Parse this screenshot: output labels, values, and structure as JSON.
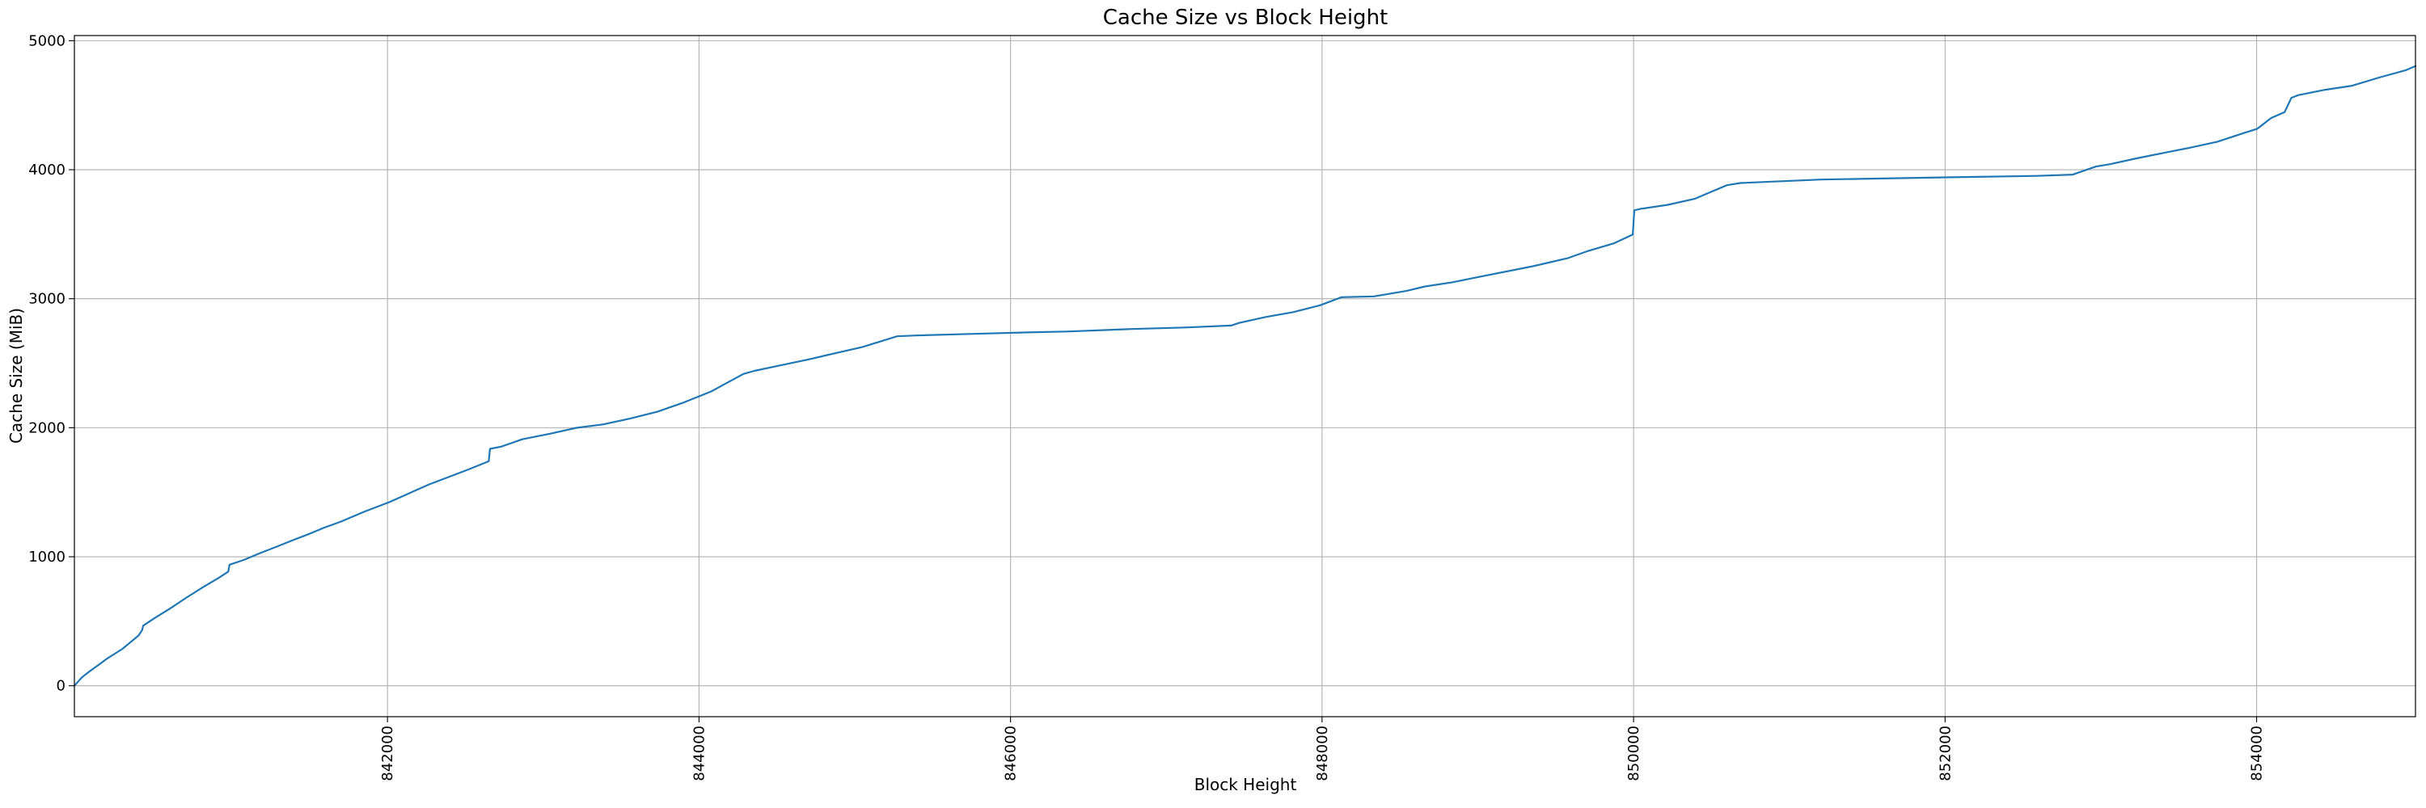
{
  "chart_data": {
    "type": "line",
    "title": "Cache Size vs Block Height",
    "xlabel": "Block Height",
    "ylabel": "Cache Size (MiB)",
    "legend": "none",
    "grid": true,
    "line_color": "#1f77b4",
    "grid_color": "#b0b0b0",
    "xlim": [
      839990,
      855020
    ],
    "ylim": [
      -240,
      5040
    ],
    "x_ticks": [
      842000,
      844000,
      846000,
      848000,
      850000,
      852000,
      854000
    ],
    "x_tick_labels": [
      "842000",
      "844000",
      "846000",
      "848000",
      "850000",
      "852000",
      "854000"
    ],
    "y_ticks": [
      0,
      1000,
      2000,
      3000,
      4000,
      5000
    ],
    "y_tick_labels": [
      "0",
      "1000",
      "2000",
      "3000",
      "4000",
      "5000"
    ],
    "series": [
      {
        "name": "cache-size",
        "points": [
          [
            839990,
            0
          ],
          [
            840040,
            67
          ],
          [
            840092,
            115
          ],
          [
            840144,
            161
          ],
          [
            840196,
            207
          ],
          [
            840299,
            286
          ],
          [
            840403,
            390
          ],
          [
            840425,
            432
          ],
          [
            840432,
            466
          ],
          [
            840507,
            526
          ],
          [
            840610,
            603
          ],
          [
            840714,
            687
          ],
          [
            840818,
            766
          ],
          [
            840922,
            840
          ],
          [
            840978,
            885
          ],
          [
            840986,
            938
          ],
          [
            841077,
            975
          ],
          [
            841181,
            1028
          ],
          [
            841285,
            1076
          ],
          [
            841388,
            1126
          ],
          [
            841492,
            1174
          ],
          [
            841596,
            1226
          ],
          [
            841700,
            1272
          ],
          [
            841855,
            1351
          ],
          [
            842011,
            1423
          ],
          [
            842266,
            1560
          ],
          [
            842525,
            1679
          ],
          [
            842650,
            1740
          ],
          [
            842658,
            1836
          ],
          [
            842729,
            1853
          ],
          [
            842867,
            1911
          ],
          [
            843040,
            1953
          ],
          [
            843213,
            1999
          ],
          [
            843386,
            2026
          ],
          [
            843559,
            2072
          ],
          [
            843732,
            2124
          ],
          [
            843905,
            2197
          ],
          [
            844078,
            2281
          ],
          [
            844285,
            2417
          ],
          [
            844355,
            2441
          ],
          [
            844528,
            2485
          ],
          [
            844701,
            2529
          ],
          [
            844874,
            2577
          ],
          [
            845047,
            2625
          ],
          [
            845272,
            2709
          ],
          [
            845393,
            2715
          ],
          [
            845739,
            2727
          ],
          [
            846085,
            2738
          ],
          [
            846362,
            2746
          ],
          [
            846777,
            2765
          ],
          [
            847123,
            2777
          ],
          [
            847417,
            2792
          ],
          [
            847469,
            2813
          ],
          [
            847642,
            2859
          ],
          [
            847815,
            2896
          ],
          [
            847988,
            2949
          ],
          [
            848126,
            3012
          ],
          [
            848334,
            3018
          ],
          [
            848541,
            3060
          ],
          [
            848662,
            3095
          ],
          [
            848835,
            3127
          ],
          [
            849008,
            3169
          ],
          [
            849354,
            3252
          ],
          [
            849579,
            3315
          ],
          [
            849700,
            3367
          ],
          [
            849873,
            3429
          ],
          [
            849995,
            3498
          ],
          [
            850005,
            3686
          ],
          [
            850047,
            3697
          ],
          [
            850219,
            3728
          ],
          [
            850392,
            3774
          ],
          [
            850500,
            3830
          ],
          [
            850600,
            3880
          ],
          [
            850686,
            3897
          ],
          [
            851205,
            3924
          ],
          [
            852001,
            3941
          ],
          [
            852589,
            3952
          ],
          [
            852820,
            3962
          ],
          [
            852969,
            4025
          ],
          [
            853056,
            4042
          ],
          [
            853229,
            4088
          ],
          [
            853402,
            4130
          ],
          [
            853575,
            4171
          ],
          [
            853748,
            4217
          ],
          [
            853921,
            4286
          ],
          [
            854004,
            4317
          ],
          [
            854094,
            4401
          ],
          [
            854180,
            4447
          ],
          [
            854223,
            4557
          ],
          [
            854266,
            4578
          ],
          [
            854440,
            4620
          ],
          [
            854613,
            4651
          ],
          [
            854786,
            4714
          ],
          [
            854959,
            4772
          ],
          [
            855020,
            4804
          ]
        ]
      }
    ]
  }
}
